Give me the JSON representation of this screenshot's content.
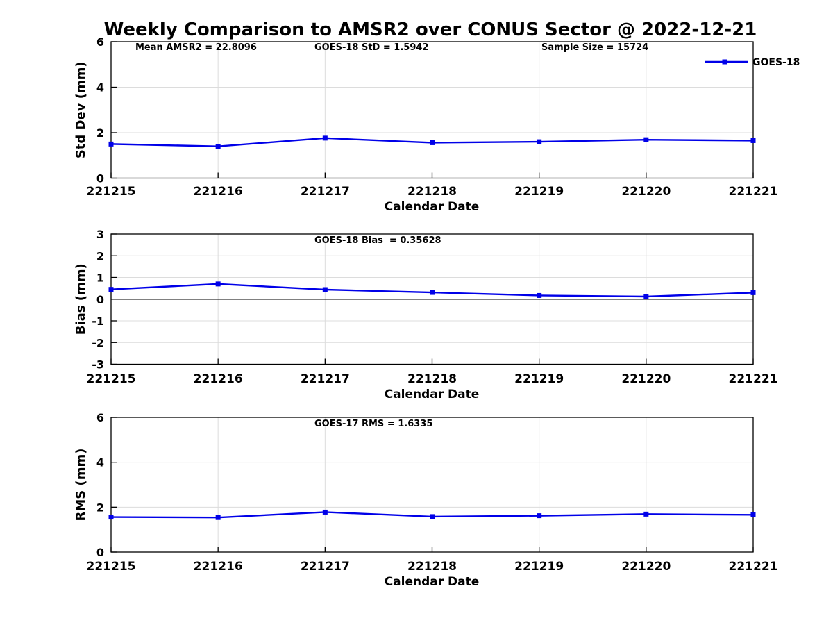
{
  "title": "Weekly Comparison to AMSR2 over CONUS Sector @ 2022-12-21",
  "legend": {
    "label": "GOES-18",
    "position": "top-right-outside"
  },
  "colors": {
    "line": "#0000e8",
    "marker": "#0000e8",
    "grid": "#dcdcdc",
    "axis": "#000000",
    "zero_line": "#000000",
    "text": "#000000",
    "background": "#ffffff"
  },
  "x_axis": {
    "label": "Calendar Date",
    "categories": [
      "221215",
      "221216",
      "221217",
      "221218",
      "221219",
      "221220",
      "221221"
    ]
  },
  "chart_data": [
    {
      "type": "line",
      "title": "",
      "xlabel": "Calendar Date",
      "ylabel": "Std Dev (mm)",
      "ylim": [
        0,
        6
      ],
      "yticks": [
        0,
        2,
        4,
        6
      ],
      "grid": true,
      "categories": [
        "221215",
        "221216",
        "221217",
        "221218",
        "221219",
        "221220",
        "221221"
      ],
      "series": [
        {
          "name": "GOES-18",
          "values": [
            1.5,
            1.4,
            1.76,
            1.56,
            1.6,
            1.69,
            1.65
          ]
        }
      ],
      "annotations": [
        "Mean AMSR2 = 22.8096",
        "GOES-18 StD = 1.5942",
        "Sample Size = 15724"
      ],
      "legend_visible": true,
      "zero_line": false
    },
    {
      "type": "line",
      "title": "",
      "xlabel": "Calendar Date",
      "ylabel": "Bias (mm)",
      "ylim": [
        -3,
        3
      ],
      "yticks": [
        -3,
        -2,
        -1,
        0,
        1,
        2,
        3
      ],
      "grid": true,
      "categories": [
        "221215",
        "221216",
        "221217",
        "221218",
        "221219",
        "221220",
        "221221"
      ],
      "series": [
        {
          "name": "GOES-18",
          "values": [
            0.45,
            0.7,
            0.44,
            0.31,
            0.17,
            0.12,
            0.3
          ]
        }
      ],
      "annotations": [
        "GOES-18 Bias  = 0.35628"
      ],
      "legend_visible": false,
      "zero_line": true
    },
    {
      "type": "line",
      "title": "",
      "xlabel": "Calendar Date",
      "ylabel": "RMS (mm)",
      "ylim": [
        0,
        6
      ],
      "yticks": [
        0,
        2,
        4,
        6
      ],
      "grid": true,
      "categories": [
        "221215",
        "221216",
        "221217",
        "221218",
        "221219",
        "221220",
        "221221"
      ],
      "series": [
        {
          "name": "GOES-17 RMS",
          "values": [
            1.56,
            1.54,
            1.78,
            1.58,
            1.62,
            1.69,
            1.66
          ]
        }
      ],
      "annotations": [
        "GOES-17 RMS = 1.6335"
      ],
      "legend_visible": false,
      "zero_line": false
    }
  ]
}
